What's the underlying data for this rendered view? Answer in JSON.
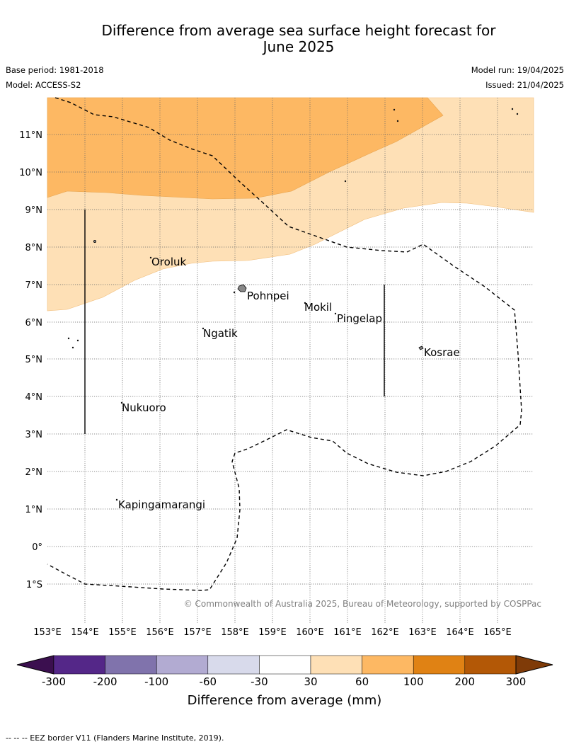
{
  "title_line1": "Difference from average sea surface height forecast for",
  "title_line2": "June 2025",
  "base_period": "Base period: 1981-2018",
  "model": "Model: ACCESS-S2",
  "model_run": "Model run: 19/04/2025",
  "issued": "Issued: 21/04/2025",
  "copyright": "© Commonwealth of Australia 2025, Bureau of Meteorology, supported by COSPPac",
  "lon_labels": [
    "153°E",
    "154°E",
    "155°E",
    "156°E",
    "157°E",
    "158°E",
    "159°E",
    "160°E",
    "161°E",
    "162°E",
    "163°E",
    "164°E",
    "165°E"
  ],
  "lat_labels": [
    "11°N",
    "10°N",
    "9°N",
    "8°N",
    "7°N",
    "6°N",
    "5°N",
    "4°N",
    "3°N",
    "2°N",
    "1°N",
    "0°",
    "1°S"
  ],
  "places": [
    {
      "name": "Oroluk",
      "lon": 155.8,
      "lat": 7.6
    },
    {
      "name": "Pohnpei",
      "lon": 158.3,
      "lat": 6.9
    },
    {
      "name": "Mokil",
      "lon": 159.8,
      "lat": 6.7
    },
    {
      "name": "Pingelap",
      "lon": 160.7,
      "lat": 6.25
    },
    {
      "name": "Ngatik",
      "lon": 157.1,
      "lat": 5.8
    },
    {
      "name": "Kosrae",
      "lon": 163.0,
      "lat": 5.3
    },
    {
      "name": "Nukuoro",
      "lon": 154.9,
      "lat": 3.85
    },
    {
      "name": "Kapingamarangi",
      "lon": 154.9,
      "lat": 1.1
    }
  ],
  "colorbar": {
    "title": "Difference from average (mm)",
    "ticks": [
      "-300",
      "-200",
      "-100",
      "-60",
      "-30",
      "30",
      "60",
      "100",
      "200",
      "300"
    ],
    "colors": [
      "#3b0f4f",
      "#542788",
      "#8073ac",
      "#b2abd2",
      "#d8daeb",
      "#ffffff",
      "#fee0b6",
      "#fdb863",
      "#e08214",
      "#b35806",
      "#7f3b08"
    ]
  },
  "footer": "--  --  -- EEZ border V11 (Flanders Marine Institute, 2019)."
}
